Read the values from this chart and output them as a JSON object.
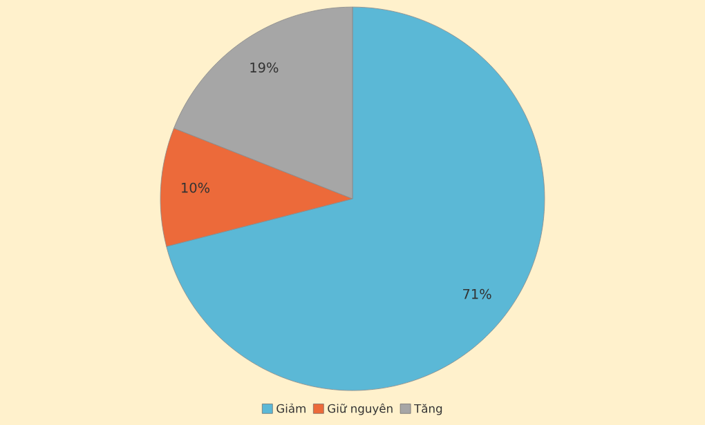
{
  "chart_data": {
    "type": "pie",
    "categories": [
      "Giảm",
      "Giữ nguyên",
      "Tăng"
    ],
    "values": [
      71,
      10,
      19
    ],
    "colors": [
      "#5bb8d6",
      "#ec6a3a",
      "#a6a6a6"
    ],
    "value_labels": [
      "71%",
      "10%",
      "19%"
    ],
    "legend": "bottom"
  }
}
